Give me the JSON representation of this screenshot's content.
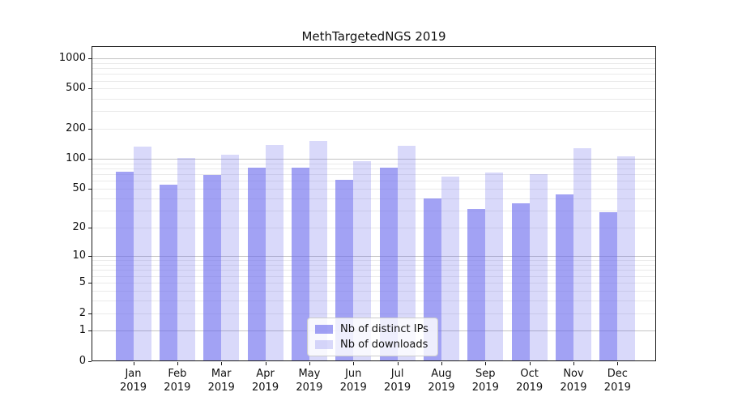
{
  "chart_data": {
    "type": "bar",
    "title": "MethTargetedNGS 2019",
    "categories": [
      "Jan",
      "Feb",
      "Mar",
      "Apr",
      "May",
      "Jun",
      "Jul",
      "Aug",
      "Sep",
      "Oct",
      "Nov",
      "Dec"
    ],
    "year_label": "2019",
    "series": [
      {
        "name": "Nb of distinct IPs",
        "color": "rgba(105,105,237,0.62)",
        "values": [
          75,
          55,
          69,
          82,
          81,
          62,
          82,
          40,
          31,
          36,
          44,
          29
        ]
      },
      {
        "name": "Nb of downloads",
        "color": "rgba(105,105,237,0.25)",
        "values": [
          133,
          102,
          111,
          138,
          152,
          95,
          135,
          67,
          73,
          70,
          129,
          107
        ]
      }
    ],
    "yscale": "log1p",
    "yticks": [
      1000,
      500,
      200,
      100,
      50,
      20,
      10,
      5,
      2,
      1,
      0
    ],
    "ylim": [
      0,
      1000
    ],
    "grid": true,
    "legend_position": "lower center",
    "colors": {
      "bar_base": "#6969ed",
      "major_gridline": "#c3c3c3",
      "minor_gridline": "#eaeaea",
      "axis": "#1a1a1a"
    }
  }
}
